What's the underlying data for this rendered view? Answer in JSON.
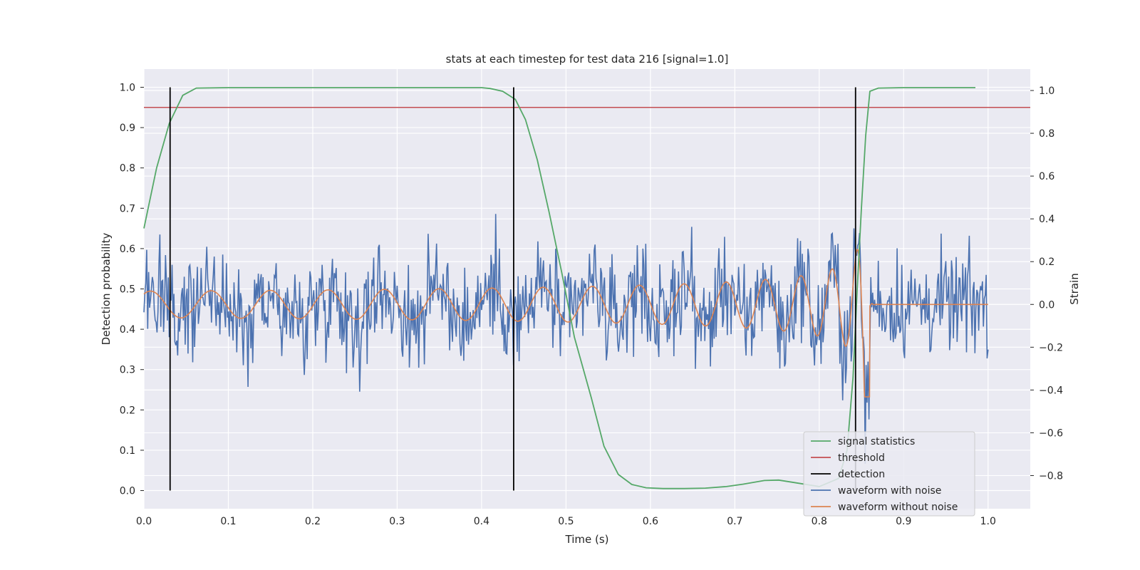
{
  "chart_data": {
    "type": "line",
    "title": "stats at each timestep for test data 216 [signal=1.0]",
    "xlabel": "Time (s)",
    "ylabel": "Detection probability",
    "y2label": "Strain",
    "xlim": [
      0.0,
      1.05
    ],
    "ylim": [
      -0.045,
      1.045
    ],
    "y2lim": [
      -0.955,
      1.1
    ],
    "xticks": [
      0.0,
      0.1,
      0.2,
      0.3,
      0.4,
      0.5,
      0.6,
      0.7,
      0.8,
      0.9,
      1.0
    ],
    "xtick_labels": [
      "0.0",
      "0.1",
      "0.2",
      "0.3",
      "0.4",
      "0.5",
      "0.6",
      "0.7",
      "0.8",
      "0.9",
      "1.0"
    ],
    "yticks": [
      0.0,
      0.1,
      0.2,
      0.3,
      0.4,
      0.5,
      0.6,
      0.7,
      0.8,
      0.9,
      1.0
    ],
    "ytick_labels": [
      "0.0",
      "0.1",
      "0.2",
      "0.3",
      "0.4",
      "0.5",
      "0.6",
      "0.7",
      "0.8",
      "0.9",
      "1.0"
    ],
    "y2ticks": [
      -0.8,
      -0.6,
      -0.4,
      -0.2,
      0.0,
      0.2,
      0.4,
      0.6,
      0.8,
      1.0
    ],
    "y2tick_labels": [
      "−0.8",
      "−0.6",
      "−0.4",
      "−0.2",
      "0.0",
      "0.2",
      "0.4",
      "0.6",
      "0.8",
      "1.0"
    ],
    "grid": true,
    "legend_position": "lower-right",
    "colors": {
      "signal_statistics": "#55a868",
      "threshold": "#c44e52",
      "detection": "#000000",
      "waveform_with_noise": "#4c72b0",
      "waveform_without_noise": "#dd8452",
      "background": "#eaeaf2"
    },
    "series": [
      {
        "name": "signal statistics",
        "axis": "left",
        "x": [
          0.0,
          0.015,
          0.03,
          0.046,
          0.062,
          0.1,
          0.2,
          0.3,
          0.4,
          0.41,
          0.425,
          0.44,
          0.452,
          0.466,
          0.48,
          0.495,
          0.51,
          0.53,
          0.545,
          0.562,
          0.578,
          0.595,
          0.615,
          0.64,
          0.665,
          0.69,
          0.71,
          0.735,
          0.752,
          0.77,
          0.8,
          0.823,
          0.833,
          0.84,
          0.845,
          0.85,
          0.855,
          0.86,
          0.87,
          0.9,
          0.95,
          0.985
        ],
        "values": [
          0.65,
          0.8,
          0.91,
          0.98,
          0.998,
          0.999,
          0.999,
          0.999,
          0.999,
          0.997,
          0.99,
          0.97,
          0.92,
          0.82,
          0.69,
          0.54,
          0.38,
          0.23,
          0.11,
          0.04,
          0.015,
          0.007,
          0.005,
          0.005,
          0.006,
          0.01,
          0.016,
          0.025,
          0.026,
          0.02,
          0.01,
          0.03,
          0.1,
          0.28,
          0.5,
          0.7,
          0.88,
          0.99,
          0.998,
          0.999,
          0.999,
          0.999
        ]
      },
      {
        "name": "threshold",
        "axis": "left",
        "x": [
          0.0,
          1.05
        ],
        "values": [
          0.95,
          0.95
        ]
      },
      {
        "name": "detection",
        "axis": "left",
        "x": [
          0.031,
          0.438,
          0.843
        ],
        "values": [
          1.0,
          1.0,
          1.0
        ],
        "y0": 0.0
      },
      {
        "name": "waveform with noise",
        "axis": "right",
        "x_range": [
          0.0,
          1.0
        ],
        "amplitude": 0.22
      },
      {
        "name": "waveform without noise",
        "axis": "right",
        "x_range": [
          0.0,
          1.0
        ],
        "merger_time": 0.855
      }
    ]
  },
  "legend": {
    "items": [
      {
        "label": "signal statistics",
        "color": "#55a868"
      },
      {
        "label": "threshold",
        "color": "#c44e52"
      },
      {
        "label": "detection",
        "color": "#000000"
      },
      {
        "label": "waveform with noise",
        "color": "#4c72b0"
      },
      {
        "label": "waveform without noise",
        "color": "#dd8452"
      }
    ]
  }
}
